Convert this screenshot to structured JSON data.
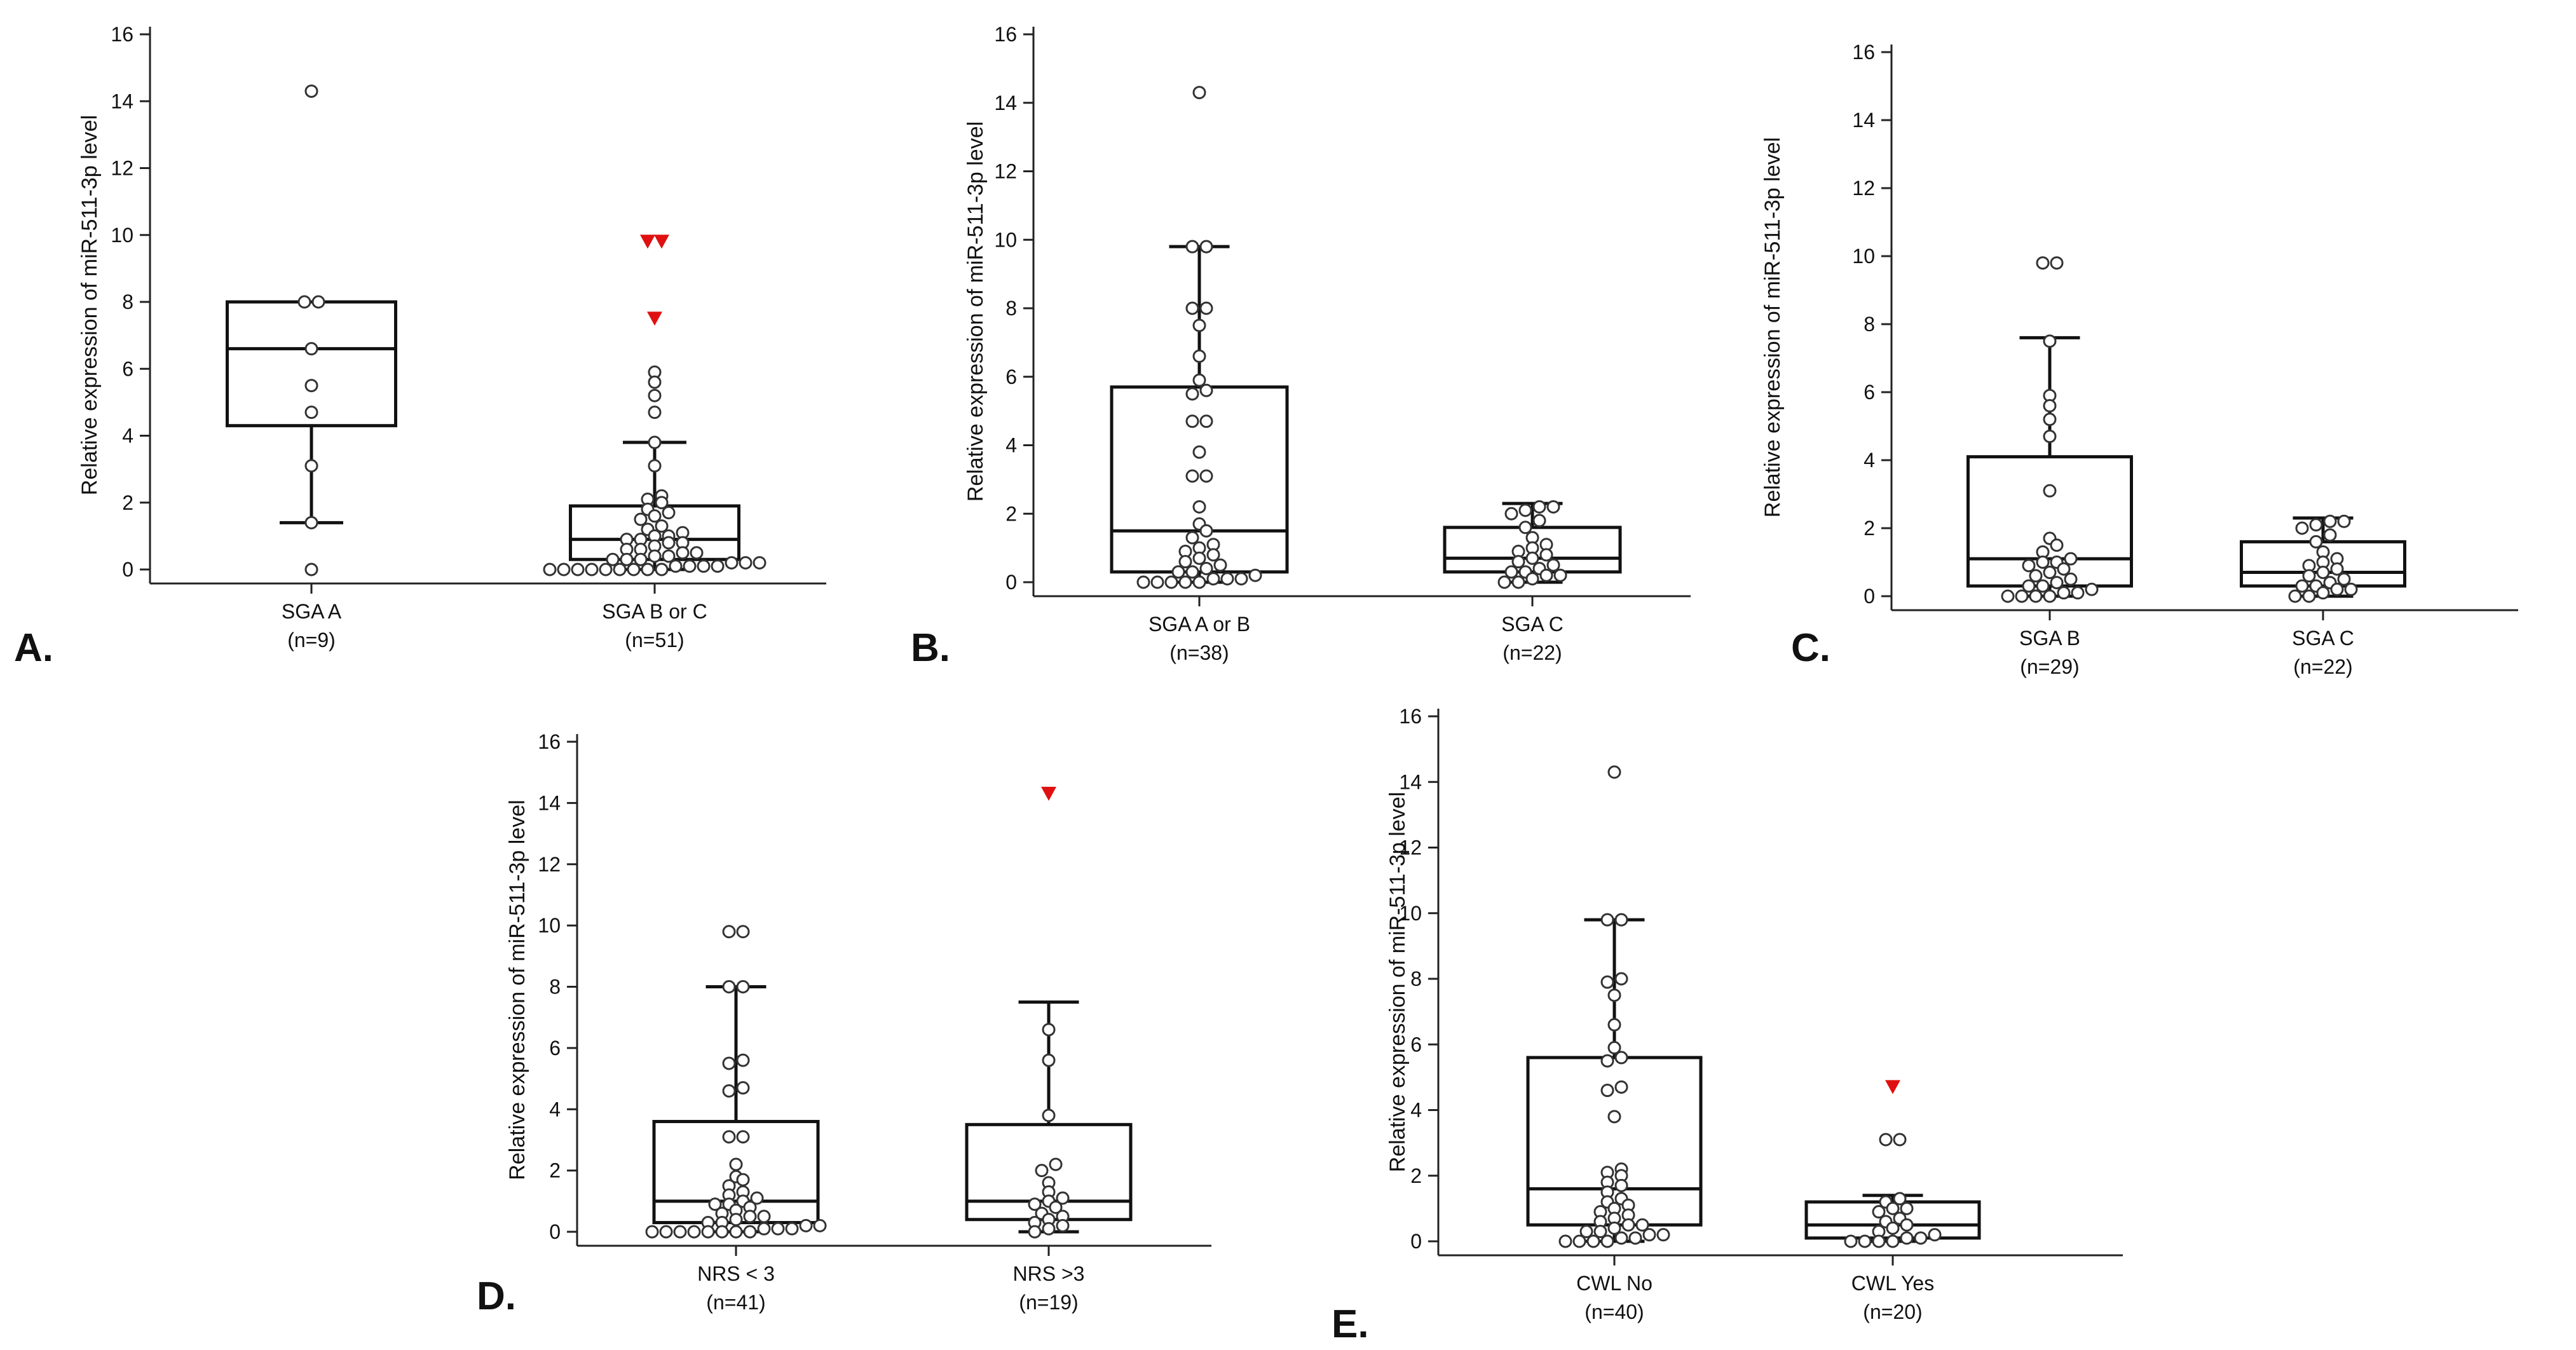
{
  "chart_data": [
    {
      "type": "box",
      "panel_label": "A.",
      "ylabel": "Relative expression of miR-511-3p level",
      "ylim": [
        0,
        16
      ],
      "yticks": [
        "0",
        "2",
        "4",
        "6",
        "8",
        "10",
        "12",
        "14",
        "16"
      ],
      "groups": [
        {
          "label": "SGA A",
          "n_label": "(n=9)",
          "q1": 4.3,
          "median": 6.6,
          "q3": 8.0,
          "whisker_low": 1.4,
          "whisker_high": 8.0,
          "points": [
            14.3,
            8.0,
            8.0,
            6.6,
            5.5,
            4.7,
            3.1,
            1.4,
            0.0
          ],
          "outliers": []
        },
        {
          "label": "SGA B or C",
          "n_label": "(n=51)",
          "q1": 0.3,
          "median": 0.9,
          "q3": 1.9,
          "whisker_low": 0.0,
          "whisker_high": 3.8,
          "points": [
            5.9,
            5.6,
            5.2,
            4.7,
            3.8,
            3.1,
            2.2,
            2.1,
            2.0,
            1.8,
            1.7,
            1.6,
            1.5,
            1.3,
            1.2,
            1.1,
            1.0,
            1.0,
            0.9,
            0.9,
            0.8,
            0.8,
            0.7,
            0.6,
            0.6,
            0.5,
            0.5,
            0.4,
            0.4,
            0.3,
            0.3,
            0.3,
            0.2,
            0.2,
            0.2,
            0.1,
            0.1,
            0.1,
            0.1,
            0.0,
            0.0,
            0.0,
            0.0,
            0.0,
            0.0,
            0.0,
            0.0,
            0.0
          ],
          "outliers": [
            9.8,
            9.8,
            7.5
          ]
        }
      ]
    },
    {
      "type": "box",
      "panel_label": "B.",
      "ylabel": "Relative expression of miR-511-3p level",
      "ylim": [
        0,
        16
      ],
      "yticks": [
        "0",
        "2",
        "4",
        "6",
        "8",
        "10",
        "12",
        "14",
        "16"
      ],
      "groups": [
        {
          "label": "SGA A or B",
          "n_label": "(n=38)",
          "q1": 0.3,
          "median": 1.5,
          "q3": 5.7,
          "whisker_low": 0.0,
          "whisker_high": 9.8,
          "points": [
            14.3,
            9.8,
            9.8,
            8.0,
            8.0,
            7.5,
            6.6,
            5.9,
            5.6,
            5.5,
            4.7,
            4.7,
            3.8,
            3.1,
            3.1,
            2.2,
            1.7,
            1.5,
            1.3,
            1.1,
            1.0,
            0.9,
            0.8,
            0.7,
            0.6,
            0.5,
            0.4,
            0.3,
            0.3,
            0.2,
            0.1,
            0.1,
            0.1,
            0.0,
            0.0,
            0.0,
            0.0,
            0.0
          ],
          "outliers": []
        },
        {
          "label": "SGA C",
          "n_label": "(n=22)",
          "q1": 0.3,
          "median": 0.7,
          "q3": 1.6,
          "whisker_low": 0.0,
          "whisker_high": 2.3,
          "points": [
            2.2,
            2.2,
            2.1,
            2.0,
            1.8,
            1.6,
            1.3,
            1.1,
            1.0,
            0.9,
            0.8,
            0.7,
            0.6,
            0.5,
            0.4,
            0.3,
            0.3,
            0.2,
            0.2,
            0.1,
            0.0,
            0.0
          ],
          "outliers": []
        }
      ]
    },
    {
      "type": "box",
      "panel_label": "C.",
      "ylabel": "Relative expression of miR-511-3p level",
      "ylim": [
        0,
        16
      ],
      "yticks": [
        "0",
        "2",
        "4",
        "6",
        "8",
        "10",
        "12",
        "14",
        "16"
      ],
      "groups": [
        {
          "label": "SGA B",
          "n_label": "(n=29)",
          "q1": 0.3,
          "median": 1.1,
          "q3": 4.1,
          "whisker_low": 0.0,
          "whisker_high": 7.6,
          "points": [
            9.8,
            9.8,
            7.5,
            5.9,
            5.6,
            5.2,
            4.7,
            3.1,
            1.7,
            1.5,
            1.3,
            1.1,
            1.0,
            1.0,
            0.9,
            0.8,
            0.7,
            0.6,
            0.5,
            0.4,
            0.3,
            0.3,
            0.2,
            0.1,
            0.1,
            0.0,
            0.0,
            0.0,
            0.0
          ],
          "outliers": []
        },
        {
          "label": "SGA C",
          "n_label": "(n=22)",
          "q1": 0.3,
          "median": 0.7,
          "q3": 1.6,
          "whisker_low": 0.0,
          "whisker_high": 2.3,
          "points": [
            2.2,
            2.2,
            2.1,
            2.0,
            1.8,
            1.6,
            1.3,
            1.1,
            1.0,
            0.9,
            0.8,
            0.7,
            0.6,
            0.5,
            0.4,
            0.3,
            0.3,
            0.2,
            0.2,
            0.1,
            0.0,
            0.0
          ],
          "outliers": []
        }
      ]
    },
    {
      "type": "box",
      "panel_label": "D.",
      "ylabel": "Relative expression of miR-511-3p level",
      "ylim": [
        0,
        16
      ],
      "yticks": [
        "0",
        "2",
        "4",
        "6",
        "8",
        "10",
        "12",
        "14",
        "16"
      ],
      "groups": [
        {
          "label": "NRS < 3",
          "n_label": "(n=41)",
          "q1": 0.3,
          "median": 1.0,
          "q3": 3.6,
          "whisker_low": 0.0,
          "whisker_high": 8.0,
          "points": [
            9.8,
            9.8,
            8.0,
            8.0,
            5.6,
            5.5,
            4.7,
            4.6,
            3.1,
            3.1,
            2.2,
            1.8,
            1.7,
            1.5,
            1.3,
            1.2,
            1.1,
            1.0,
            0.9,
            0.9,
            0.8,
            0.7,
            0.6,
            0.5,
            0.5,
            0.4,
            0.3,
            0.3,
            0.2,
            0.2,
            0.1,
            0.1,
            0.1,
            0.0,
            0.0,
            0.0,
            0.0,
            0.0,
            0.0,
            0.0,
            0.0
          ],
          "outliers": []
        },
        {
          "label": "NRS >3",
          "n_label": "(n=19)",
          "q1": 0.4,
          "median": 1.0,
          "q3": 3.5,
          "whisker_low": 0.0,
          "whisker_high": 7.5,
          "points": [
            6.6,
            5.6,
            3.8,
            2.2,
            2.0,
            1.6,
            1.3,
            1.1,
            1.0,
            0.9,
            0.8,
            0.6,
            0.5,
            0.4,
            0.3,
            0.2,
            0.1,
            0.0
          ],
          "outliers": [
            14.3
          ]
        }
      ]
    },
    {
      "type": "box",
      "panel_label": "E.",
      "ylabel": "Relative expression of miR-511-3p level",
      "ylim": [
        0,
        16
      ],
      "yticks": [
        "0",
        "2",
        "4",
        "6",
        "8",
        "10",
        "12",
        "14",
        "16"
      ],
      "groups": [
        {
          "label": "CWL No",
          "n_label": "(n=40)",
          "q1": 0.5,
          "median": 1.6,
          "q3": 5.6,
          "whisker_low": 0.0,
          "whisker_high": 9.8,
          "points": [
            14.3,
            9.8,
            9.8,
            8.0,
            7.9,
            7.5,
            6.6,
            5.9,
            5.6,
            5.5,
            4.7,
            4.6,
            3.8,
            2.2,
            2.1,
            2.0,
            1.8,
            1.7,
            1.5,
            1.3,
            1.2,
            1.1,
            1.0,
            0.9,
            0.8,
            0.7,
            0.6,
            0.5,
            0.5,
            0.4,
            0.3,
            0.3,
            0.2,
            0.2,
            0.1,
            0.1,
            0.0,
            0.0,
            0.0,
            0.0
          ],
          "outliers": []
        },
        {
          "label": "CWL Yes",
          "n_label": "(n=20)",
          "q1": 0.1,
          "median": 0.5,
          "q3": 1.2,
          "whisker_low": 0.0,
          "whisker_high": 1.4,
          "points": [
            3.1,
            3.1,
            1.3,
            1.2,
            1.0,
            1.0,
            0.9,
            0.7,
            0.6,
            0.5,
            0.4,
            0.3,
            0.2,
            0.1,
            0.1,
            0.0,
            0.0,
            0.0,
            0.0
          ],
          "outliers": [
            4.7
          ]
        }
      ]
    }
  ]
}
